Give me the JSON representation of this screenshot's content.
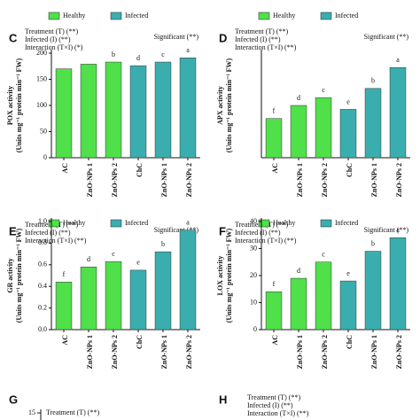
{
  "chart_data": [
    {
      "type": "bar",
      "panel": "C",
      "y_label": [
        "POX activity",
        "(Units mg⁻¹ protein min⁻¹ FW)"
      ],
      "annotations": [
        "Treatment (T) (**)",
        "Infected (I) (**)",
        "Interaction (T×I) (*)"
      ],
      "significance": "Significant (**)",
      "categories": [
        "AC",
        "ZnO-NPs 1",
        "ZnO-NPs 2",
        "ChC",
        "ZnO-NPs 1",
        "ZnO-NPs 2"
      ],
      "series": [
        {
          "name": "Healthy",
          "color": "#4fe04a",
          "values": [
            170,
            179,
            183,
            null,
            null,
            null
          ]
        },
        {
          "name": "Infected",
          "color": "#3aaeae",
          "values": [
            null,
            null,
            null,
            176,
            183,
            191
          ]
        }
      ],
      "letters": [
        null,
        null,
        "b",
        "d",
        "c",
        "a"
      ],
      "ylim": [
        0,
        200
      ],
      "yticks": [
        0,
        50,
        100,
        150,
        200
      ]
    },
    {
      "type": "bar",
      "panel": "D",
      "y_label": [
        "APX activity",
        "(Units mg⁻¹ protein min⁻¹ FW)"
      ],
      "annotations": [
        "Treatment (T) (**)",
        "Infected (I) (**)",
        "Interaction (T×I) (**)"
      ],
      "significance": "Significant (**)",
      "categories": [
        "AC",
        "ZnO-NPs 1",
        "ZnO-NPs 2",
        "ChC",
        "ZnO-NPs 1",
        "ZnO-NPs 2"
      ],
      "series": [
        {
          "name": "Healthy",
          "color": "#4fe04a",
          "values": [
            0.3,
            0.4,
            0.46,
            null,
            null,
            null
          ]
        },
        {
          "name": "Infected",
          "color": "#3aaeae",
          "values": [
            null,
            null,
            null,
            0.37,
            0.53,
            0.69
          ]
        }
      ],
      "letters": [
        "f",
        "d",
        "c",
        "e",
        "b",
        "a"
      ],
      "ylim": [
        0,
        0.8
      ]
    },
    {
      "type": "bar",
      "panel": "E",
      "y_label": [
        "GR activity",
        "(Units mg⁻¹ protein min⁻¹ FW)"
      ],
      "annotations": [
        "Treatment (T) (**)",
        "Infected (I) (**)",
        "Interaction (T×I) (**)"
      ],
      "significance": "Significant (**)",
      "categories": [
        "AC",
        "ZnO-NPs 1",
        "ZnO-NPs 2",
        "ChC",
        "ZnO-NPs 1",
        "ZnO-NPs 2"
      ],
      "series": [
        {
          "name": "Healthy",
          "color": "#4fe04a",
          "values": [
            0.44,
            0.58,
            0.63,
            null,
            null,
            null
          ]
        },
        {
          "name": "Infected",
          "color": "#3aaeae",
          "values": [
            null,
            null,
            null,
            0.55,
            0.72,
            0.92
          ]
        }
      ],
      "letters": [
        "f",
        "d",
        "c",
        "e",
        "b",
        "a"
      ],
      "ylim": [
        0,
        1
      ],
      "yticks": [
        {
          "value": 0,
          "label": "0.0"
        },
        0.2,
        0.4,
        0.6,
        0.8,
        {
          "value": 1,
          "label": "1.0"
        }
      ]
    },
    {
      "type": "bar",
      "panel": "F",
      "y_label": [
        "LOX activity",
        "(Units mg⁻¹ protein min⁻¹ FW)"
      ],
      "annotations": [
        "Treatment (T) (**)",
        "Infected (I) (**)",
        "Interaction (T×I) (**)"
      ],
      "significance": "Significant (**)",
      "categories": [
        "AC",
        "ZnO-NPs 1",
        "ZnO-NPs 2",
        "ChC",
        "ZnO-NPs 1",
        "ZnO-NPs 2"
      ],
      "series": [
        {
          "name": "Healthy",
          "color": "#4fe04a",
          "values": [
            14,
            19,
            25,
            null,
            null,
            null
          ]
        },
        {
          "name": "Infected",
          "color": "#3aaeae",
          "values": [
            null,
            null,
            null,
            18,
            29,
            34
          ]
        }
      ],
      "letters": [
        "f",
        "d",
        "c",
        "e",
        "b",
        "a"
      ],
      "ylim": [
        0,
        40
      ],
      "yticks": [
        0,
        10,
        20,
        30,
        40
      ]
    }
  ],
  "partial_panels": [
    {
      "panel": "G",
      "yticks": [
        15
      ],
      "annotations": [
        "Treatment (T) (**)"
      ]
    },
    {
      "panel": "H",
      "annotations": [
        "Treatment (T) (**)",
        "Infected (I) (**)",
        "Interaction (T×I) (**)"
      ]
    }
  ]
}
